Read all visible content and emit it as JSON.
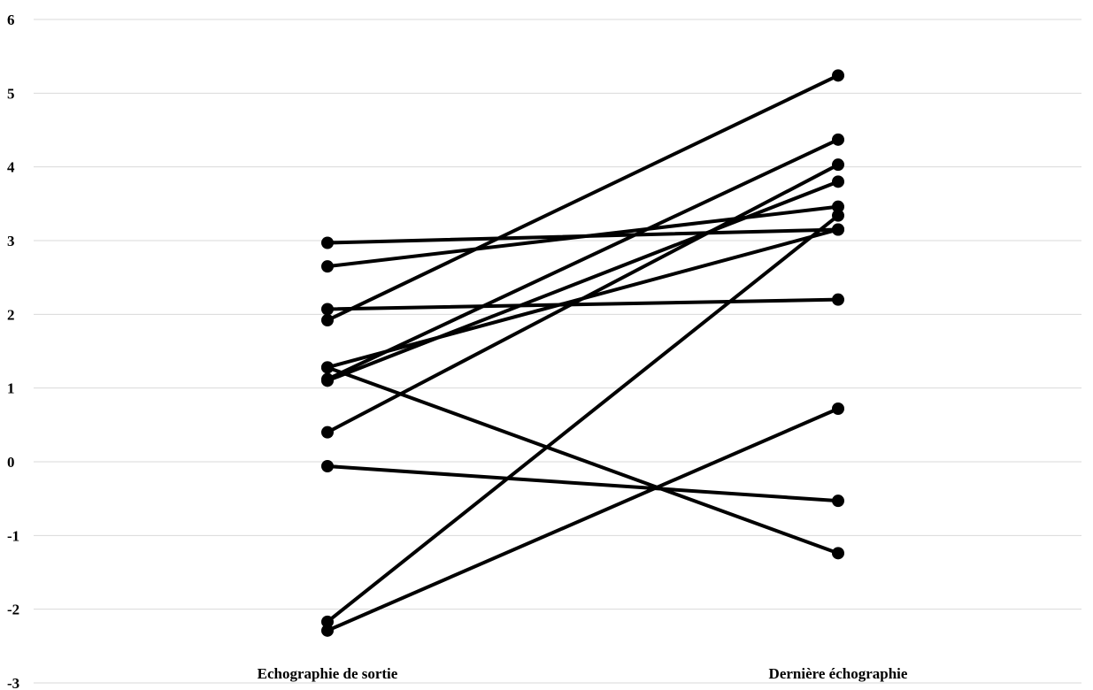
{
  "chart_data": {
    "type": "line",
    "title": "",
    "xlabel": "",
    "ylabel": "",
    "categories": [
      "Echographie de sortie",
      "Dernière échographie"
    ],
    "ylim": [
      -3,
      6
    ],
    "yticks": [
      -3,
      -2,
      -1,
      0,
      1,
      2,
      3,
      4,
      5,
      6
    ],
    "ytick_labels": [
      "-3",
      "-2",
      "-1",
      "0",
      "1",
      "2",
      "3",
      "4",
      "5",
      "6"
    ],
    "grid": true,
    "legend": "none",
    "line_color": "#000000",
    "grid_color": "#d9d9d9",
    "series": [
      {
        "values": [
          2.97,
          3.15
        ]
      },
      {
        "values": [
          2.65,
          3.46
        ]
      },
      {
        "values": [
          2.07,
          2.2
        ]
      },
      {
        "values": [
          1.92,
          5.24
        ]
      },
      {
        "values": [
          1.28,
          3.15
        ]
      },
      {
        "values": [
          1.28,
          -1.24
        ]
      },
      {
        "values": [
          1.12,
          4.37
        ]
      },
      {
        "values": [
          1.1,
          3.8
        ]
      },
      {
        "values": [
          0.4,
          4.03
        ]
      },
      {
        "values": [
          -0.06,
          -0.53
        ]
      },
      {
        "values": [
          -2.17,
          3.34
        ]
      },
      {
        "values": [
          -2.29,
          0.72
        ]
      }
    ]
  }
}
